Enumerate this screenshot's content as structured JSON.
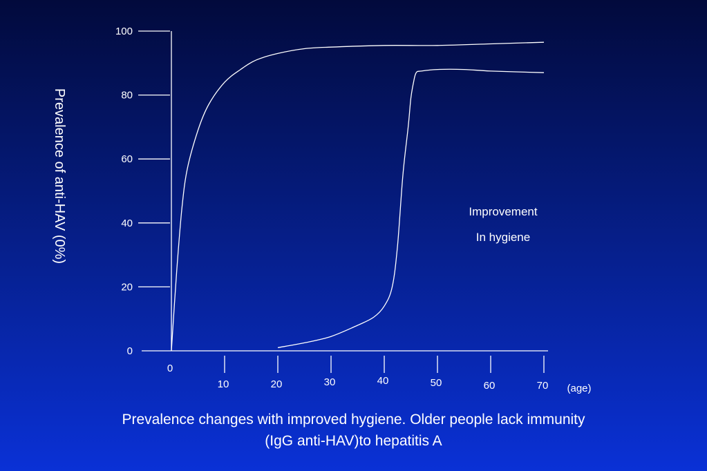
{
  "chart_data": {
    "type": "line",
    "ylabel": "Prevalence of anti-HAV (0%)",
    "xlabel": "(age)",
    "y_ticks": [
      "0",
      "20",
      "40",
      "60",
      "80",
      "100"
    ],
    "x_ticks": [
      "0",
      "10",
      "20",
      "30",
      "40",
      "50",
      "60",
      "70"
    ],
    "xlim": [
      0,
      70
    ],
    "ylim": [
      0,
      100
    ],
    "annotation": [
      "Improvement",
      "In hygiene"
    ],
    "series": [
      {
        "x": [
          0,
          1,
          2,
          3,
          5,
          7,
          10,
          13,
          16,
          20,
          25,
          30,
          40,
          50,
          60,
          70
        ],
        "y": [
          0,
          25,
          45,
          57,
          69,
          77,
          84,
          88,
          91,
          93,
          94.5,
          95,
          95.5,
          95.5,
          96,
          96.5
        ]
      },
      {
        "x": [
          20,
          25,
          30,
          35,
          38,
          40,
          41.5,
          42.5,
          43.5,
          44.5,
          45,
          45.5,
          46,
          47,
          50,
          55,
          60,
          70
        ],
        "y": [
          1,
          2.5,
          4.5,
          8,
          10.5,
          14,
          20,
          33,
          55,
          70,
          79,
          84,
          87,
          87.5,
          88,
          88,
          87.5,
          87
        ]
      }
    ]
  },
  "caption": {
    "line1": "Prevalence changes with improved hygiene. Older people lack immunity",
    "line2": "(IgG anti-HAV)to hepatitis A"
  },
  "colors": {
    "background_top": "#020a3c",
    "background_bottom": "#0a31d6",
    "lines": "#ffffff"
  }
}
